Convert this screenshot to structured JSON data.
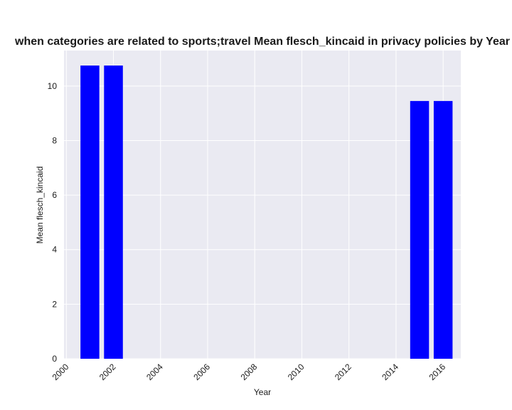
{
  "chart_data": {
    "type": "bar",
    "title": "when categories are related to sports;travel Mean flesch_kincaid in privacy policies by Year",
    "xlabel": "Year",
    "ylabel": "Mean flesch_kincaid",
    "x": [
      2001,
      2002,
      2015,
      2016
    ],
    "values": [
      10.75,
      10.75,
      9.45,
      9.45
    ],
    "xlim": [
      1999.9,
      2016.75
    ],
    "ylim": [
      0,
      11.3
    ],
    "xticks": [
      2000,
      2002,
      2004,
      2006,
      2008,
      2010,
      2012,
      2014,
      2016
    ],
    "yticks": [
      0,
      2,
      4,
      6,
      8,
      10
    ],
    "bar_color": "#0000ff",
    "background_color": "#eaeaf2",
    "grid": true
  }
}
